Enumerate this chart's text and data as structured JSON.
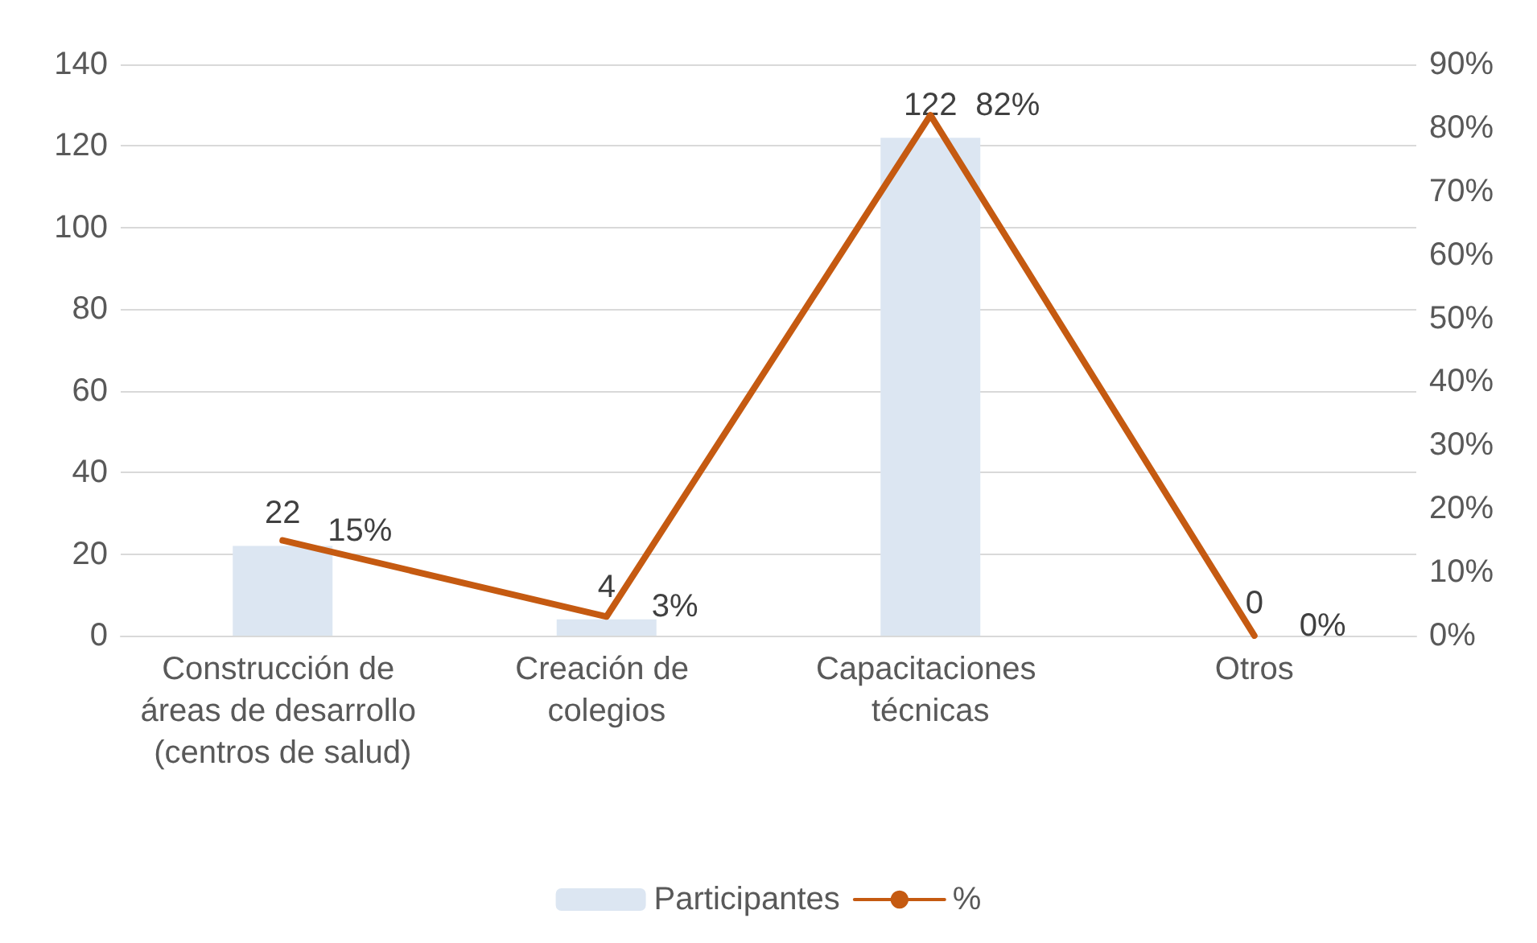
{
  "chart_data": {
    "type": "bar",
    "categories": [
      "Construcción de áreas de desarrollo (centros de salud)",
      "Creación de colegios",
      "Capacitaciones técnicas",
      "Otros"
    ],
    "series": [
      {
        "name": "Participantes",
        "color": "#dce6f2",
        "values": [
          22,
          4,
          122,
          0
        ],
        "value_labels": [
          "22",
          "4",
          "122",
          "0"
        ]
      },
      {
        "name": "%",
        "type": "line",
        "axis": "y2",
        "color": "#c55a11",
        "values": [
          15,
          3,
          82,
          0
        ],
        "value_labels": [
          "15%",
          "3%",
          "82%",
          "0%"
        ]
      }
    ],
    "ylim": [
      0,
      140
    ],
    "yticks": [
      0,
      20,
      40,
      60,
      80,
      100,
      120,
      140
    ],
    "y2lim": [
      0,
      90
    ],
    "y2ticks": [
      {
        "value": 0,
        "label": "0%"
      },
      {
        "value": 10,
        "label": "10%"
      },
      {
        "value": 20,
        "label": "20%"
      },
      {
        "value": 30,
        "label": "30%"
      },
      {
        "value": 40,
        "label": "40%"
      },
      {
        "value": 50,
        "label": "50%"
      },
      {
        "value": 60,
        "label": "60%"
      },
      {
        "value": 70,
        "label": "70%"
      },
      {
        "value": 80,
        "label": "80%"
      },
      {
        "value": 90,
        "label": "90%"
      }
    ],
    "grid": "y",
    "legend": "bottom",
    "marker": "none",
    "line_style": "solid"
  }
}
